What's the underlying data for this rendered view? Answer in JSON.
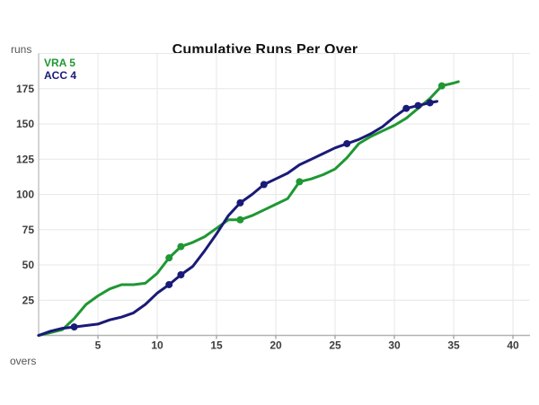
{
  "chart_data": {
    "type": "line",
    "title": "Cumulative Runs Per Over",
    "ylabel": "runs",
    "xlabel": "overs",
    "x_ticks": [
      5,
      10,
      15,
      20,
      25,
      30,
      35,
      40
    ],
    "y_ticks": [
      25,
      50,
      75,
      100,
      125,
      150,
      175
    ],
    "y_gridlines": [
      25,
      50,
      75,
      100,
      125,
      150,
      175,
      200
    ],
    "xlim": [
      0,
      41.5
    ],
    "ylim": [
      0,
      200
    ],
    "grid": "on",
    "legend_position": "top-left",
    "series": [
      {
        "name": "VRA 5",
        "color": "#1f9733",
        "points": [
          [
            0,
            0
          ],
          [
            1,
            2
          ],
          [
            2,
            4
          ],
          [
            3,
            12
          ],
          [
            4,
            22
          ],
          [
            5,
            28
          ],
          [
            6,
            33
          ],
          [
            7,
            36
          ],
          [
            8,
            36
          ],
          [
            9,
            37
          ],
          [
            10,
            44
          ],
          [
            11,
            55
          ],
          [
            12,
            63
          ],
          [
            13,
            66
          ],
          [
            14,
            70
          ],
          [
            15,
            76
          ],
          [
            16,
            82
          ],
          [
            17,
            82
          ],
          [
            18,
            85
          ],
          [
            19,
            89
          ],
          [
            20,
            93
          ],
          [
            21,
            97
          ],
          [
            22,
            109
          ],
          [
            23,
            111
          ],
          [
            24,
            114
          ],
          [
            25,
            118
          ],
          [
            26,
            126
          ],
          [
            27,
            136
          ],
          [
            28,
            141
          ],
          [
            29,
            145
          ],
          [
            30,
            149
          ],
          [
            31,
            154
          ],
          [
            32,
            161
          ],
          [
            33,
            168
          ],
          [
            34,
            177
          ],
          [
            35,
            179
          ],
          [
            35.4,
            180
          ]
        ],
        "wickets": [
          [
            11,
            55
          ],
          [
            12,
            63
          ],
          [
            17,
            82
          ],
          [
            22,
            109
          ],
          [
            34,
            177
          ]
        ]
      },
      {
        "name": "ACC 4",
        "color": "#1a1a78",
        "points": [
          [
            0,
            0
          ],
          [
            1,
            3
          ],
          [
            2,
            5
          ],
          [
            3,
            6
          ],
          [
            4,
            7
          ],
          [
            5,
            8
          ],
          [
            6,
            11
          ],
          [
            7,
            13
          ],
          [
            8,
            16
          ],
          [
            9,
            22
          ],
          [
            10,
            30
          ],
          [
            11,
            36
          ],
          [
            12,
            43
          ],
          [
            13,
            49
          ],
          [
            14,
            60
          ],
          [
            15,
            72
          ],
          [
            16,
            85
          ],
          [
            17,
            94
          ],
          [
            18,
            100
          ],
          [
            19,
            107
          ],
          [
            20,
            111
          ],
          [
            21,
            115
          ],
          [
            22,
            121
          ],
          [
            23,
            125
          ],
          [
            24,
            129
          ],
          [
            25,
            133
          ],
          [
            26,
            136
          ],
          [
            27,
            139
          ],
          [
            28,
            143
          ],
          [
            29,
            148
          ],
          [
            30,
            155
          ],
          [
            31,
            161
          ],
          [
            32,
            163
          ],
          [
            33,
            165
          ],
          [
            33.6,
            166
          ]
        ],
        "wickets": [
          [
            3,
            6
          ],
          [
            11,
            36
          ],
          [
            12,
            43
          ],
          [
            17,
            94
          ],
          [
            19,
            107
          ],
          [
            26,
            136
          ],
          [
            31,
            161
          ],
          [
            32,
            163
          ],
          [
            33,
            165
          ]
        ]
      }
    ]
  }
}
